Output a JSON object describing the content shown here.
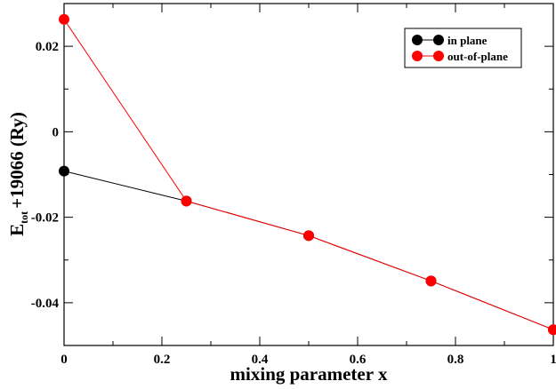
{
  "chart_data": {
    "type": "line",
    "xlabel": "mixing parameter x",
    "ylabel_main": "E",
    "ylabel_sub": "tot",
    "ylabel_rest": "+19066 (Ry)",
    "xlim": [
      0,
      1
    ],
    "ylim": [
      -0.05,
      0.03
    ],
    "xticks": [
      0,
      0.2,
      0.4,
      0.6,
      0.8,
      1
    ],
    "xtick_labels": [
      "0",
      "0.2",
      "0.4",
      "0.6",
      "0.8",
      "1"
    ],
    "yticks": [
      -0.04,
      -0.02,
      0,
      0.02
    ],
    "ytick_labels": [
      "-0.04",
      "-0.02",
      "0",
      "0.02"
    ],
    "grid": false,
    "legend_placement": "top-right",
    "series": [
      {
        "name": "in plane",
        "color": "#000000",
        "x": [
          0,
          0.25,
          0.5,
          0.75,
          1
        ],
        "y": [
          -0.0092,
          -0.0162,
          -0.0243,
          -0.0349,
          -0.0463
        ]
      },
      {
        "name": "out-of-plane",
        "color": "#ff0000",
        "x": [
          0,
          0.25,
          0.5,
          0.75,
          1
        ],
        "y": [
          0.0263,
          -0.0162,
          -0.0243,
          -0.0349,
          -0.0463
        ]
      }
    ]
  }
}
